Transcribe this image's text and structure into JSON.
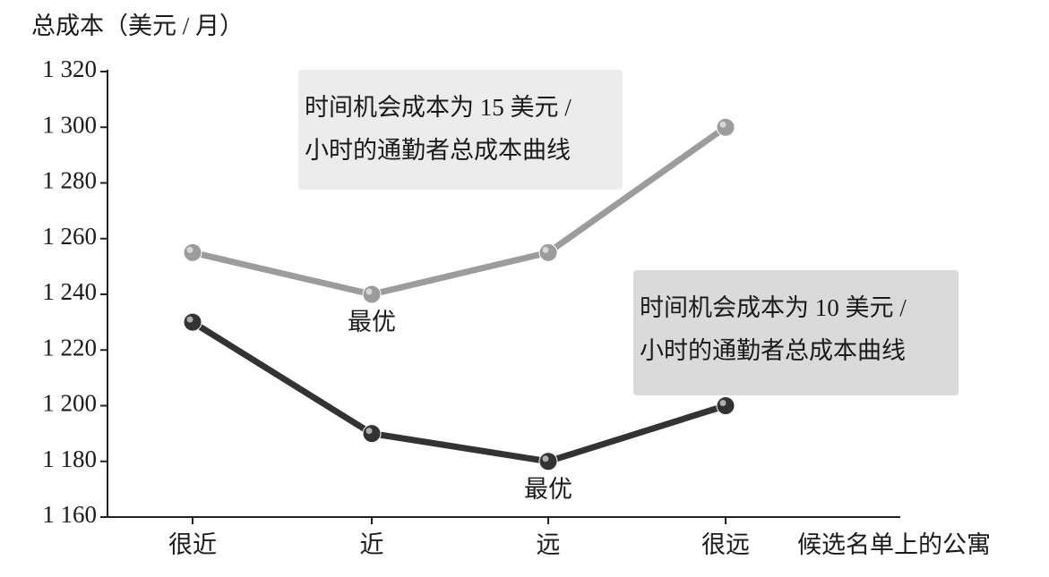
{
  "chart_data": {
    "type": "line",
    "y_axis_label": "总成本（美元 / 月）",
    "x_axis_label": "候选名单上的公寓",
    "categories": [
      "很近",
      "近",
      "远",
      "很远"
    ],
    "ylim": [
      1160,
      1320
    ],
    "yticks": [
      {
        "value": 1160,
        "label": "1 160"
      },
      {
        "value": 1180,
        "label": "1 180"
      },
      {
        "value": 1200,
        "label": "1 200"
      },
      {
        "value": 1220,
        "label": "1 220"
      },
      {
        "value": 1240,
        "label": "1 240"
      },
      {
        "value": 1260,
        "label": "1 260"
      },
      {
        "value": 1280,
        "label": "1 280"
      },
      {
        "value": 1300,
        "label": "1 300"
      },
      {
        "value": 1320,
        "label": "1 320"
      }
    ],
    "series": [
      {
        "name": [
          "时间机会成本为 15 美元 /",
          "小时的通勤者总成本曲线"
        ],
        "color": "#9c9c9c",
        "box_color": "#ececec",
        "values": [
          1255,
          1240,
          1255,
          1300
        ],
        "optimum_label": "最优"
      },
      {
        "name": [
          "时间机会成本为 10 美元 /",
          "小时的通勤者总成本曲线"
        ],
        "color": "#333333",
        "box_color": "#dadada",
        "values": [
          1230,
          1190,
          1180,
          1200
        ],
        "optimum_label": "最优"
      }
    ]
  }
}
